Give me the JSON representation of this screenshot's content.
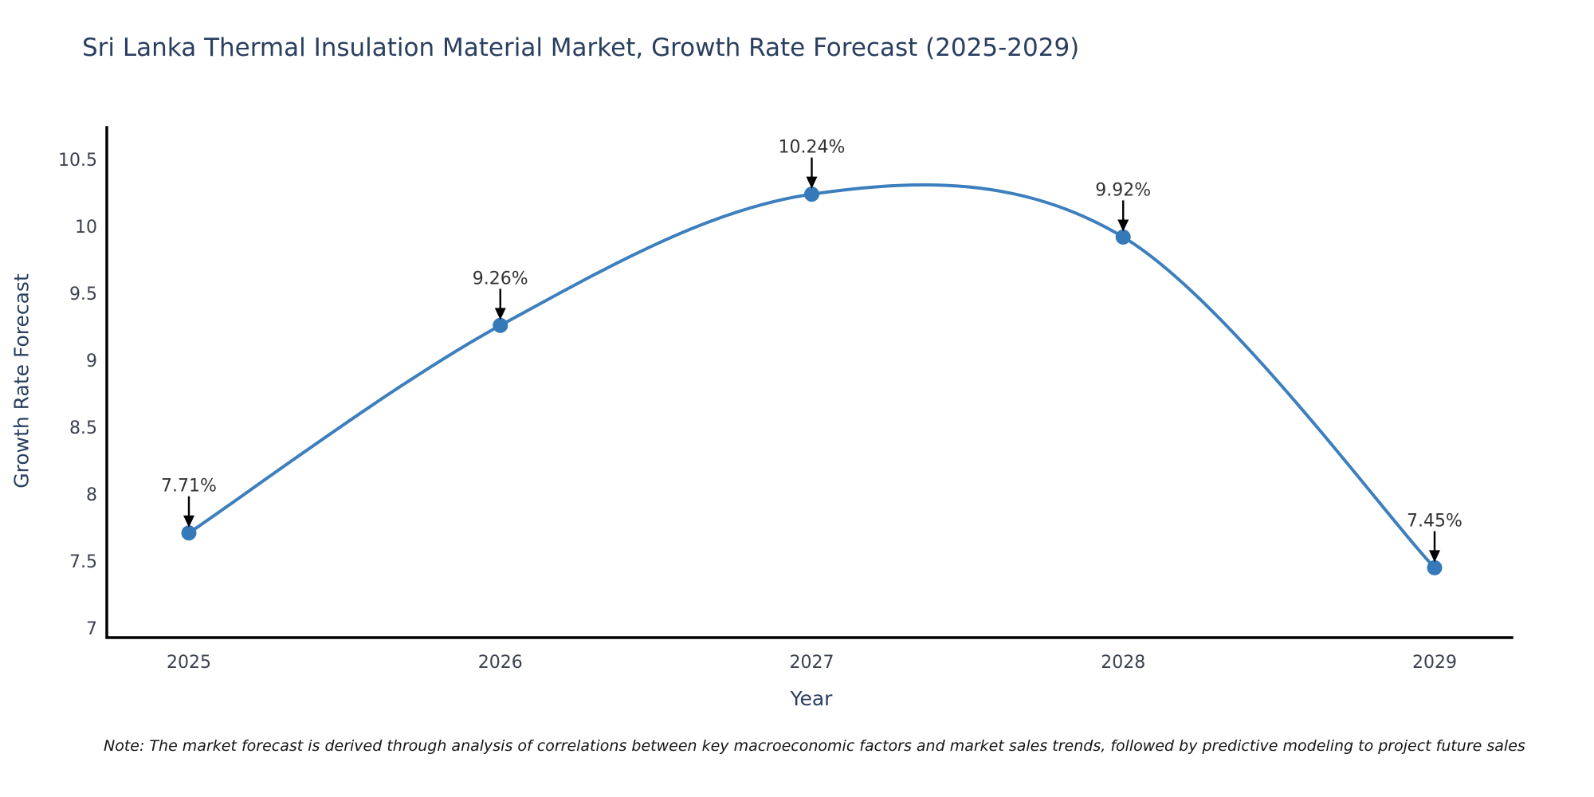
{
  "title": "Sri Lanka Thermal Insulation Material Market, Growth Rate Forecast (2025-2029)",
  "chart_data": {
    "type": "line",
    "categories": [
      "2025",
      "2026",
      "2027",
      "2028",
      "2029"
    ],
    "series": [
      {
        "name": "Growth Rate Forecast",
        "values": [
          7.71,
          9.26,
          10.24,
          9.92,
          7.45
        ]
      }
    ],
    "data_labels": [
      "7.71%",
      "9.26%",
      "10.24%",
      "9.92%",
      "7.45%"
    ],
    "title": "Sri Lanka Thermal Insulation Material Market, Growth Rate Forecast (2025-2029)",
    "xlabel": "Year",
    "ylabel": "Growth Rate Forecast",
    "ylim": [
      7,
      10.5
    ],
    "ytick_labels": [
      "7",
      "7.5",
      "8",
      "8.5",
      "9",
      "9.5",
      "10",
      "10.5"
    ],
    "line_shape": "spline",
    "grid": false,
    "legend": "none",
    "colors": {
      "line": "#3d7fbd",
      "marker": "#3579b8",
      "axis": "#000000",
      "annotation_arrow": "#000000",
      "heading_text": "#2a3f5f",
      "tick_text": "#3c4150"
    }
  },
  "note": {
    "text": "Note: The market forecast is derived through analysis of correlations between key macroeconomic factors and market sales trends, followed by predictive modeling to project future sales"
  }
}
